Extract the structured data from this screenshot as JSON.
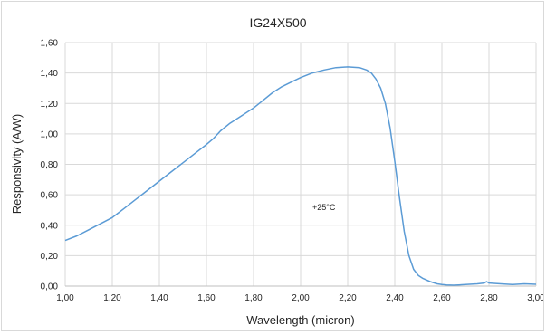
{
  "chart_data": {
    "type": "line",
    "title": "IG24X500",
    "xlabel": "Wavelength (micron)",
    "ylabel": "Responsivity (A/W)",
    "xlim": [
      1.0,
      3.0
    ],
    "ylim": [
      0.0,
      1.6
    ],
    "x_ticks": [
      1.0,
      1.2,
      1.4,
      1.6,
      1.8,
      2.0,
      2.2,
      2.4,
      2.6,
      2.8,
      3.0
    ],
    "y_ticks": [
      0.0,
      0.2,
      0.4,
      0.6,
      0.8,
      1.0,
      1.2,
      1.4,
      1.6
    ],
    "x_tick_labels": [
      "1,00",
      "1,20",
      "1,40",
      "1,60",
      "1,80",
      "2,00",
      "2,20",
      "2,40",
      "2,60",
      "2,80",
      "3,00"
    ],
    "y_tick_labels": [
      "0,00",
      "0,20",
      "0,40",
      "0,60",
      "0,80",
      "1,00",
      "1,20",
      "1,40",
      "1,60"
    ],
    "grid": true,
    "annotation": "+25°C",
    "annotation_at": [
      2.05,
      0.5
    ],
    "series_color": "#5b9bd5",
    "series": [
      {
        "x": [
          1.0,
          1.05,
          1.1,
          1.15,
          1.2,
          1.25,
          1.3,
          1.35,
          1.4,
          1.45,
          1.5,
          1.55,
          1.6,
          1.63,
          1.66,
          1.7,
          1.75,
          1.8,
          1.84,
          1.88,
          1.92,
          1.96,
          2.0,
          2.05,
          2.1,
          2.15,
          2.2,
          2.25,
          2.28,
          2.3,
          2.32,
          2.34,
          2.36,
          2.38,
          2.4,
          2.42,
          2.44,
          2.46,
          2.48,
          2.5,
          2.52,
          2.55,
          2.58,
          2.6,
          2.62,
          2.65,
          2.7,
          2.75,
          2.78,
          2.79,
          2.8,
          2.85,
          2.9,
          2.95,
          3.0
        ],
        "y": [
          0.3,
          0.33,
          0.37,
          0.41,
          0.45,
          0.51,
          0.57,
          0.63,
          0.69,
          0.75,
          0.81,
          0.87,
          0.93,
          0.97,
          1.02,
          1.07,
          1.12,
          1.17,
          1.22,
          1.27,
          1.31,
          1.34,
          1.37,
          1.4,
          1.42,
          1.435,
          1.44,
          1.435,
          1.42,
          1.4,
          1.36,
          1.3,
          1.2,
          1.04,
          0.82,
          0.58,
          0.36,
          0.2,
          0.11,
          0.07,
          0.05,
          0.03,
          0.015,
          0.01,
          0.008,
          0.006,
          0.01,
          0.015,
          0.02,
          0.03,
          0.02,
          0.015,
          0.01,
          0.015,
          0.012
        ]
      }
    ]
  }
}
